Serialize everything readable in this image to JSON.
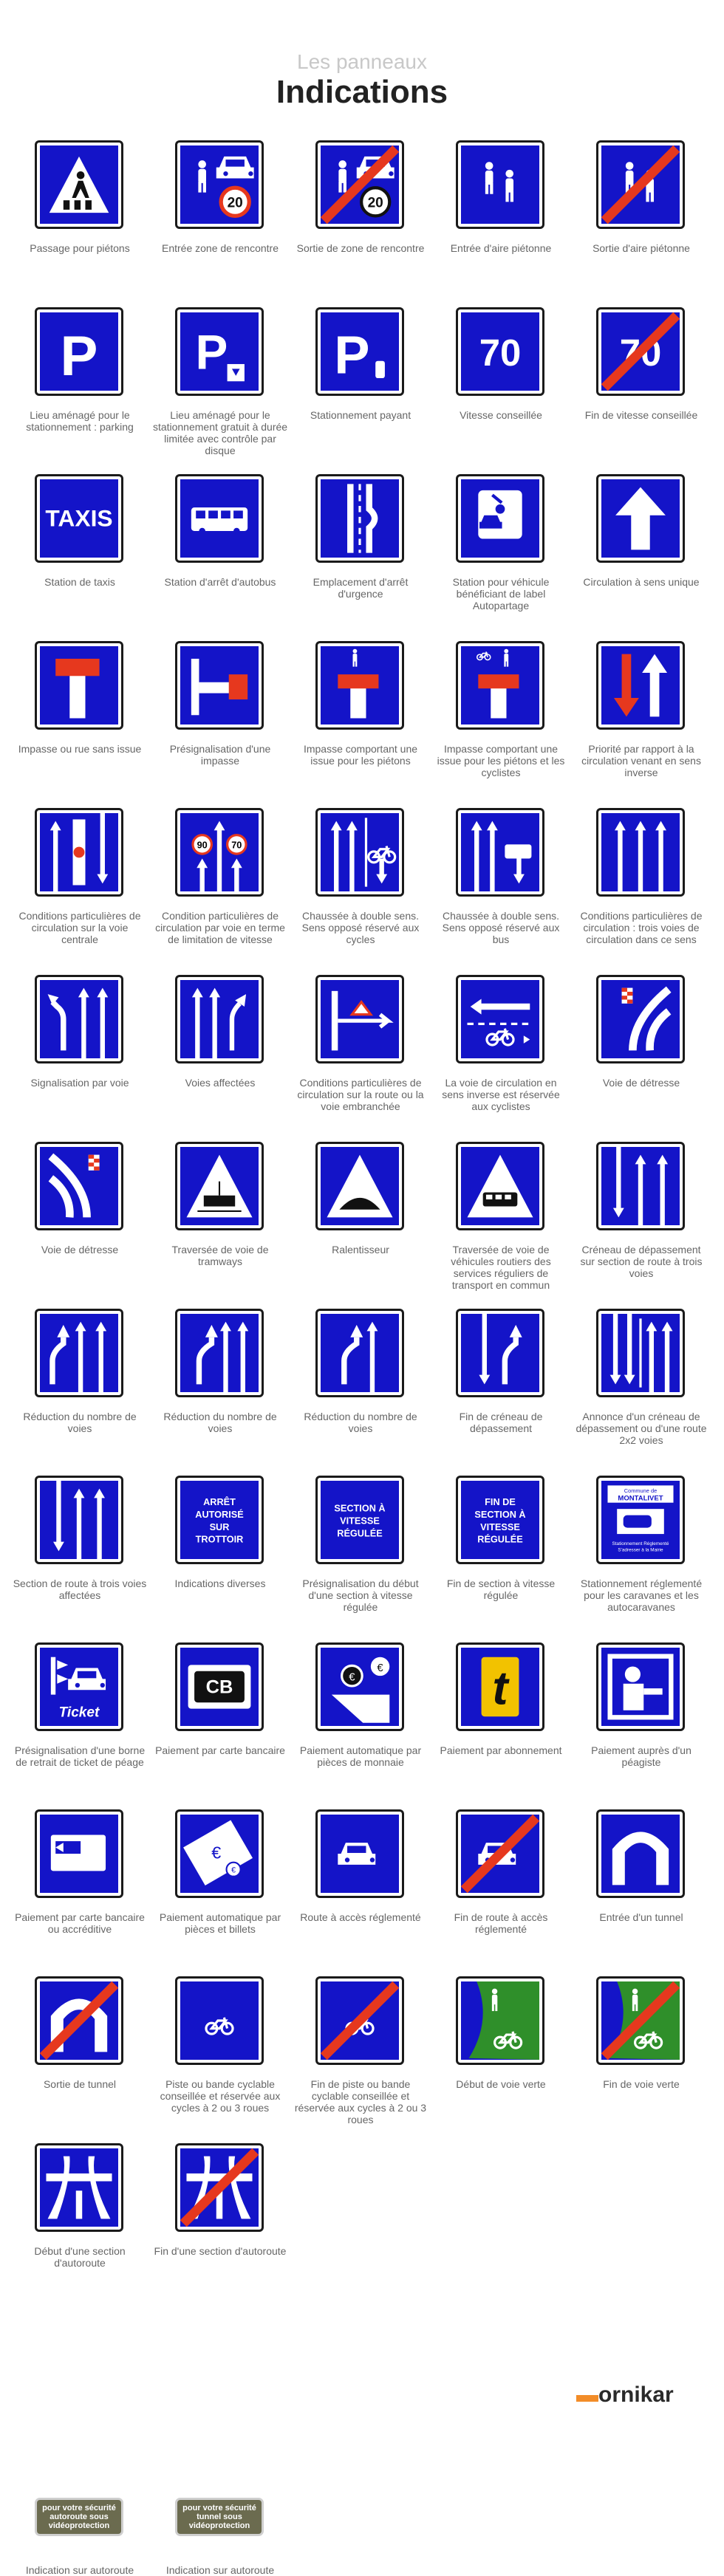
{
  "header": {
    "kicker": "Les panneaux",
    "title": "Indications"
  },
  "brand": {
    "name": "ornikar"
  },
  "colors": {
    "blue": "#1414c8",
    "red": "#e6381e",
    "green": "#2f8f2a",
    "plate": "#6b6b4f"
  },
  "signs": [
    {
      "label": "Passage pour piétons",
      "icon": "pedestrian-crossing-icon"
    },
    {
      "label": "Entrée zone de rencontre",
      "icon": "meeting-zone-icon"
    },
    {
      "label": "Sortie de zone de rencontre",
      "icon": "meeting-zone-end-icon"
    },
    {
      "label": "Entrée d'aire piétonne",
      "icon": "pedestrian-area-icon"
    },
    {
      "label": "Sortie d'aire piétonne",
      "icon": "pedestrian-area-end-icon"
    },
    {
      "label": "Lieu aménagé pour le stationnement : parking",
      "icon": "parking-icon"
    },
    {
      "label": "Lieu aménagé pour le stationnement gratuit à durée limitée avec contrôle par disque",
      "icon": "parking-disc-icon"
    },
    {
      "label": "Stationnement payant",
      "icon": "paid-parking-icon"
    },
    {
      "label": "Vitesse conseillée",
      "icon": "advised-speed-icon"
    },
    {
      "label": "Fin de vitesse conseillée",
      "icon": "advised-speed-end-icon"
    },
    {
      "label": "Station de taxis",
      "icon": "taxi-icon"
    },
    {
      "label": "Station d'arrêt d'autobus",
      "icon": "bus-stop-icon"
    },
    {
      "label": "Emplacement d'arrêt d'urgence",
      "icon": "emergency-stop-icon"
    },
    {
      "label": "Station pour véhicule bénéficiant de label Autopartage",
      "icon": "car-sharing-icon"
    },
    {
      "label": "Circulation à sens unique",
      "icon": "one-way-icon"
    },
    {
      "label": "Impasse ou rue sans issue",
      "icon": "dead-end-icon"
    },
    {
      "label": "Présignalisation d'une impasse",
      "icon": "dead-end-ahead-icon"
    },
    {
      "label": "Impasse comportant une issue pour les piétons",
      "icon": "dead-end-pedestrian-icon"
    },
    {
      "label": "Impasse comportant une issue pour les piétons et les cyclistes",
      "icon": "dead-end-pedestrian-cycle-icon"
    },
    {
      "label": "Priorité par rapport à la circulation venant en sens inverse",
      "icon": "priority-oncoming-icon"
    },
    {
      "label": "Conditions particulières de circulation sur la voie centrale",
      "icon": "central-lane-icon"
    },
    {
      "label": "Condition particulières de circulation par voie en terme de limitation de vitesse",
      "icon": "lane-speed-icon"
    },
    {
      "label": "Chaussée à double sens. Sens opposé réservé aux cycles",
      "icon": "contraflow-cycle-icon"
    },
    {
      "label": "Chaussée à double sens. Sens opposé réservé aux bus",
      "icon": "contraflow-bus-icon"
    },
    {
      "label": "Conditions particulières de circulation : trois voies de circulation dans ce sens",
      "icon": "three-lanes-icon"
    },
    {
      "label": "Signalisation par voie",
      "icon": "lane-signage-icon"
    },
    {
      "label": "Voies affectées",
      "icon": "assigned-lanes-icon"
    },
    {
      "label": "Conditions particulières de circulation sur la route ou la voie embranchée",
      "icon": "branch-road-icon"
    },
    {
      "label": "La voie de circulation en sens inverse est réservée aux cyclistes",
      "icon": "reverse-cycle-lane-icon"
    },
    {
      "label": "Voie de détresse",
      "icon": "escape-lane-right-icon"
    },
    {
      "label": "Voie de détresse",
      "icon": "escape-lane-left-icon"
    },
    {
      "label": "Traversée de voie de tramways",
      "icon": "tram-crossing-icon"
    },
    {
      "label": "Ralentisseur",
      "icon": "speed-bump-icon"
    },
    {
      "label": "Traversée de voie de véhicules routiers des services réguliers de transport en commun",
      "icon": "bus-crossing-icon"
    },
    {
      "label": "Créneau de dépassement sur section de route à trois voies",
      "icon": "overtaking-three-lanes-icon"
    },
    {
      "label": "Réduction du nombre de voies",
      "icon": "lane-reduction-3-icon"
    },
    {
      "label": "Réduction du nombre de voies",
      "icon": "lane-reduction-2-icon"
    },
    {
      "label": "Réduction du nombre de voies",
      "icon": "lane-reduction-1-icon"
    },
    {
      "label": "Fin de créneau de dépassement",
      "icon": "overtaking-end-icon"
    },
    {
      "label": "Annonce d'un créneau de dépassement ou d'une route 2x2 voies",
      "icon": "overtaking-announce-icon"
    },
    {
      "label": "Section de route à trois voies affectées",
      "icon": "three-lane-section-icon"
    },
    {
      "label": "Indications diverses",
      "icon": "text-sign-icon",
      "text": "ARRÊT AUTORISÉ SUR TROTTOIR"
    },
    {
      "label": "Présignalisation du début d'une section à vitesse régulée",
      "icon": "text-sign-icon",
      "text": "SECTION À VITESSE RÉGULÉE"
    },
    {
      "label": "Fin de section à vitesse régulée",
      "icon": "text-sign-icon",
      "text": "FIN DE SECTION À VITESSE RÉGULÉE"
    },
    {
      "label": "Stationnement réglementé pour les caravanes et les autocaravanes",
      "icon": "caravan-parking-icon",
      "text": "Commune de MONTALIVET",
      "subtext": "Stationnement Réglementé S'adresser à la Mairie"
    },
    {
      "label": "Présignalisation d'une borne de retrait de ticket de péage",
      "icon": "toll-ticket-icon",
      "text": "Ticket"
    },
    {
      "label": "Paiement par carte bancaire",
      "icon": "card-payment-icon",
      "text": "CB"
    },
    {
      "label": "Paiement automatique par pièces de monnaie",
      "icon": "coin-payment-icon"
    },
    {
      "label": "Paiement par abonnement",
      "icon": "subscription-payment-icon",
      "text": "t"
    },
    {
      "label": "Paiement auprès d'un péagiste",
      "icon": "toll-attendant-icon"
    },
    {
      "label": "Paiement par carte bancaire ou accréditive",
      "icon": "credit-card-icon"
    },
    {
      "label": "Paiement automatique par pièces et billets",
      "icon": "coins-notes-icon"
    },
    {
      "label": "Route à accès réglementé",
      "icon": "regulated-road-icon"
    },
    {
      "label": "Fin de route à accès réglementé",
      "icon": "regulated-road-end-icon"
    },
    {
      "label": "Entrée d'un tunnel",
      "icon": "tunnel-icon"
    },
    {
      "label": "Sortie de tunnel",
      "icon": "tunnel-end-icon"
    },
    {
      "label": "Piste ou bande cyclable conseillée et réservée aux cycles à 2 ou 3 roues",
      "icon": "cycle-lane-icon"
    },
    {
      "label": "Fin de piste ou bande cyclable conseillée et réservée aux cycles à 2 ou 3 roues",
      "icon": "cycle-lane-end-icon"
    },
    {
      "label": "Début de voie verte",
      "icon": "greenway-icon"
    },
    {
      "label": "Fin de voie verte",
      "icon": "greenway-end-icon"
    },
    {
      "label": "Début d'une section d'autoroute",
      "icon": "motorway-icon"
    },
    {
      "label": "Fin d'une section d'autoroute",
      "icon": "motorway-end-icon"
    }
  ],
  "plates": [
    {
      "label": "Indication sur autoroute",
      "text": "pour votre sécurité autoroute sous vidéoprotection"
    },
    {
      "label": "Indication sur autoroute",
      "text": "pour votre sécurité tunnel sous vidéoprotection"
    }
  ]
}
